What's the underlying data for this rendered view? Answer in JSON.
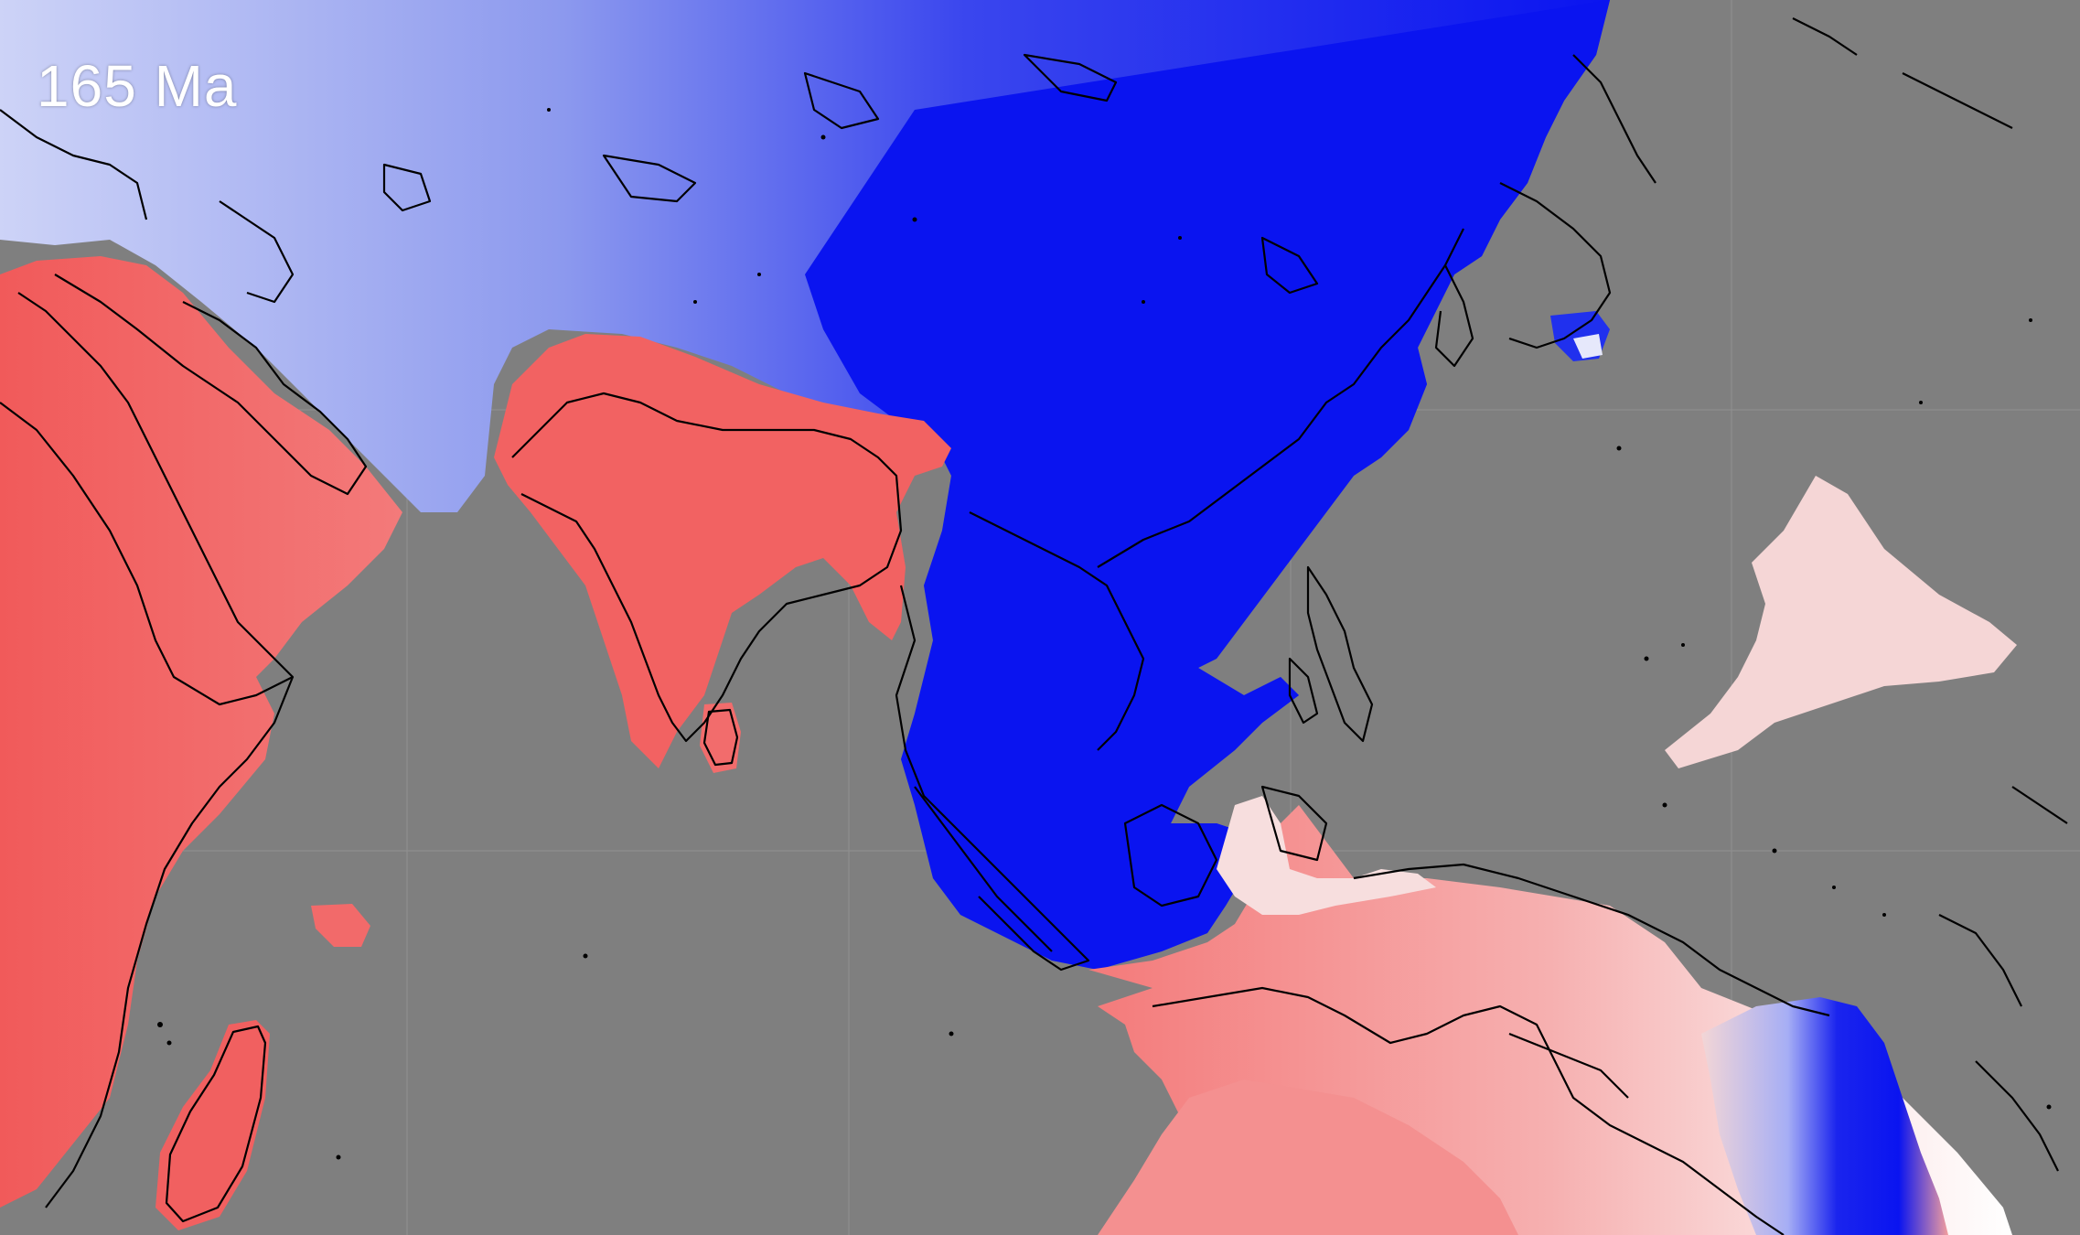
{
  "map": {
    "age_label": "165 Ma",
    "colors": {
      "ocean": "#7f7f7f",
      "cold": "#0a14f0",
      "cool_light": "#9aa6f2",
      "warm": "#f16a6a",
      "warm_light": "#f9d3d3",
      "coastline": "#000000",
      "graticule": "#9a9a9a"
    }
  }
}
